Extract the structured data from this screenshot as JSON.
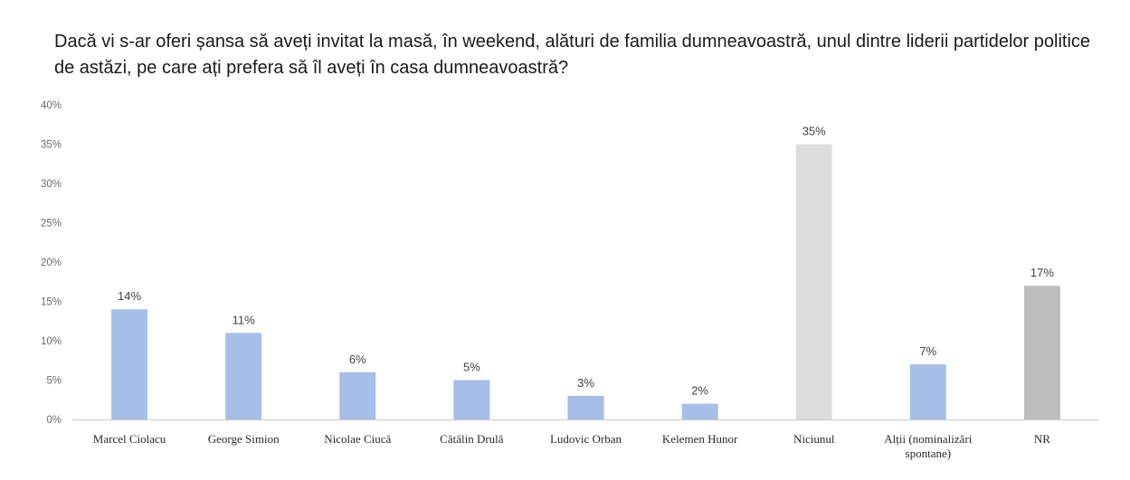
{
  "chart_data": {
    "type": "bar",
    "title": "Dacă vi s-ar oferi șansa să aveți invitat la masă, în weekend, alături de familia dumneavoastră, unul dintre liderii partidelor politice de astăzi, pe care ați prefera să îl aveți în casa dumneavoastră?",
    "categories": [
      "Marcel Ciolacu",
      "George Simion",
      "Nicolae Ciucă",
      "Cătălin Drulă",
      "Ludovic Orban",
      "Kelemen Hunor",
      "Niciunul",
      "Alții (nominalizări spontane)",
      "NR"
    ],
    "category_lines": [
      [
        "Marcel Ciolacu"
      ],
      [
        "George Simion"
      ],
      [
        "Nicolae Ciucă"
      ],
      [
        "Cătălin Drulă"
      ],
      [
        "Ludovic Orban"
      ],
      [
        "Kelemen Hunor"
      ],
      [
        "Niciunul"
      ],
      [
        "Alții (nominalizări",
        "spontane)"
      ],
      [
        "NR"
      ]
    ],
    "values": [
      14,
      11,
      6,
      5,
      3,
      2,
      35,
      7,
      17
    ],
    "data_labels": [
      "14%",
      "11%",
      "6%",
      "5%",
      "3%",
      "2%",
      "35%",
      "7%",
      "17%"
    ],
    "bar_colors": [
      "#a6bee8",
      "#a6bee8",
      "#a6bee8",
      "#a6bee8",
      "#a6bee8",
      "#a6bee8",
      "#dcdcdc",
      "#a6bee8",
      "#bdbdbd"
    ],
    "ylim": [
      0,
      40
    ],
    "yticks": [
      0,
      5,
      10,
      15,
      20,
      25,
      30,
      35,
      40
    ],
    "ytick_labels": [
      "0%",
      "5%",
      "10%",
      "15%",
      "20%",
      "25%",
      "30%",
      "35%",
      "40%"
    ],
    "grid": false,
    "legend": "none",
    "xlabel": "",
    "ylabel": ""
  }
}
